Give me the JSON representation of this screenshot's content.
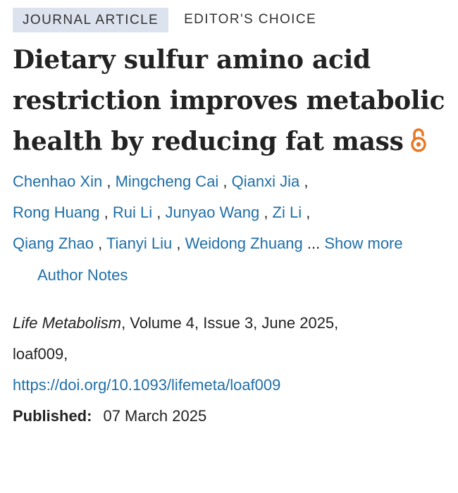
{
  "badges": {
    "type": "JOURNAL ARTICLE",
    "editor": "EDITOR'S CHOICE"
  },
  "title": "Dietary sulfur amino acid restriction improves metabolic health by reducing fat mass",
  "icons": {
    "open_access": "open-access-icon",
    "open_access_color": "#e87722"
  },
  "authors": [
    "Chenhao Xin",
    "Mingcheng Cai",
    "Qianxi Jia",
    "Rong Huang",
    "Rui Li",
    "Junyao Wang",
    "Zi Li",
    "Qiang Zhao",
    "Tianyi Liu",
    "Weidong Zhuang"
  ],
  "authors_separator": " , ",
  "authors_trailing": " ... ",
  "show_more_label": "Show more",
  "author_notes_label": "Author Notes",
  "citation": {
    "journal": "Life Metabolism",
    "details": ", Volume 4, Issue 3, June 2025,",
    "article_id": "loaf009,",
    "doi": "https://doi.org/10.1093/lifemeta/loaf009"
  },
  "published": {
    "label": "Published:",
    "date": "07 March 2025"
  },
  "colors": {
    "link": "#1f6fa8",
    "badge_bg": "#dde3ee",
    "text": "#222222"
  }
}
